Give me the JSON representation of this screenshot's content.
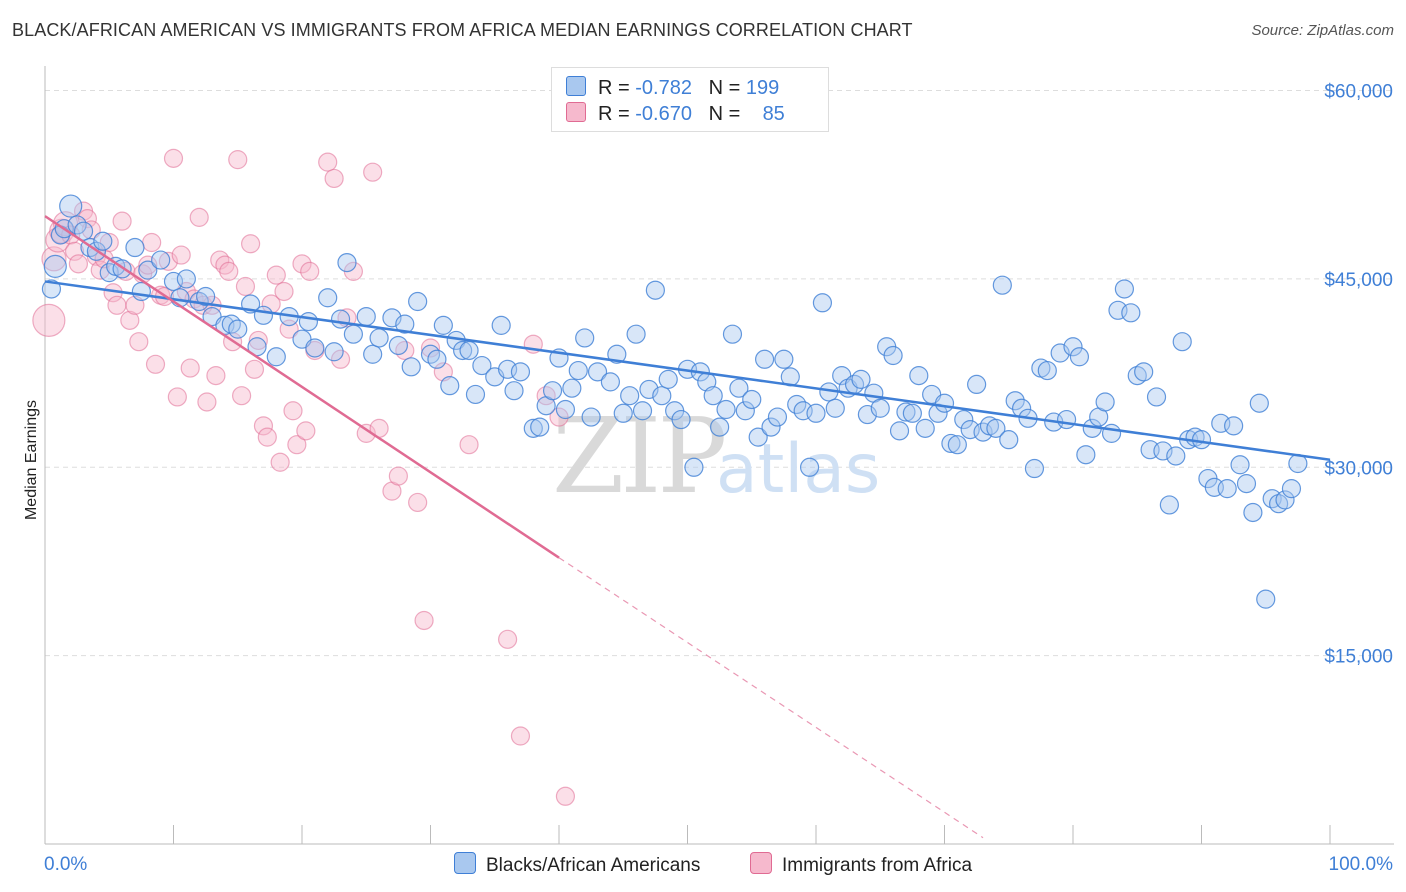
{
  "title": "BLACK/AFRICAN AMERICAN VS IMMIGRANTS FROM AFRICA MEDIAN EARNINGS CORRELATION CHART",
  "source": "Source: ZipAtlas.com",
  "watermark": {
    "zip": "ZIP",
    "atlas": "atlas"
  },
  "colors": {
    "blue": "#3f7fd6",
    "pink": "#e06b93",
    "blue_fill": "#a9c8ef",
    "pink_fill": "#f6b9cd",
    "grid": "#dddddd"
  },
  "legend": {
    "rows": [
      {
        "r_label": "R =",
        "r_value": "-0.782",
        "n_label": "N =",
        "n_value": "199"
      },
      {
        "r_label": "R =",
        "r_value": "-0.670",
        "n_label": "N =",
        "n_value": "85"
      }
    ]
  },
  "bottom_legend": {
    "blue": "Blacks/African Americans",
    "pink": "Immigrants from Africa"
  },
  "chart_data": {
    "type": "scatter",
    "title": "BLACK/AFRICAN AMERICAN VS IMMIGRANTS FROM AFRICA MEDIAN EARNINGS CORRELATION CHART",
    "xlabel": "",
    "ylabel": "Median Earnings",
    "xlim": [
      0,
      100
    ],
    "ylim": [
      0,
      61000
    ],
    "x_tick_labels": [
      "0.0%",
      "100.0%"
    ],
    "y_ticks": [
      15000,
      30000,
      45000,
      60000
    ],
    "y_tick_labels": [
      "$15,000",
      "$30,000",
      "$45,000",
      "$60,000"
    ],
    "grid": true,
    "legend_position": "top-center",
    "series": [
      {
        "name": "Blacks/African Americans",
        "color": "#3f7fd6",
        "R": -0.782,
        "N": 199,
        "trend": {
          "x": [
            0,
            100
          ],
          "y": [
            44800,
            30600
          ]
        },
        "points": [
          [
            0.5,
            44200
          ],
          [
            0.8,
            46000
          ],
          [
            1.2,
            48500
          ],
          [
            1.5,
            49000
          ],
          [
            2,
            50800
          ],
          [
            2.5,
            49300
          ],
          [
            3,
            48800
          ],
          [
            3.5,
            47500
          ],
          [
            4,
            47200
          ],
          [
            4.5,
            48000
          ],
          [
            5,
            45500
          ],
          [
            5.5,
            46000
          ],
          [
            6,
            45800
          ],
          [
            7,
            47500
          ],
          [
            7.5,
            44000
          ],
          [
            8,
            45700
          ],
          [
            9,
            46500
          ],
          [
            10,
            44800
          ],
          [
            10.5,
            43500
          ],
          [
            11,
            45000
          ],
          [
            12,
            43200
          ],
          [
            12.5,
            43600
          ],
          [
            13,
            42000
          ],
          [
            14,
            41300
          ],
          [
            14.5,
            41400
          ],
          [
            15,
            41000
          ],
          [
            16,
            43000
          ],
          [
            16.5,
            39600
          ],
          [
            17,
            42100
          ],
          [
            18,
            38800
          ],
          [
            19,
            42000
          ],
          [
            20,
            40200
          ],
          [
            20.5,
            41600
          ],
          [
            21,
            39500
          ],
          [
            22,
            43500
          ],
          [
            22.5,
            39200
          ],
          [
            23,
            41800
          ],
          [
            23.5,
            46300
          ],
          [
            24,
            40600
          ],
          [
            25,
            42000
          ],
          [
            25.5,
            39000
          ],
          [
            26,
            40300
          ],
          [
            27,
            41900
          ],
          [
            27.5,
            39700
          ],
          [
            28,
            41400
          ],
          [
            28.5,
            38000
          ],
          [
            29,
            43200
          ],
          [
            30,
            39000
          ],
          [
            30.5,
            38600
          ],
          [
            31,
            41300
          ],
          [
            31.5,
            36500
          ],
          [
            32,
            40100
          ],
          [
            32.5,
            39300
          ],
          [
            33,
            39300
          ],
          [
            33.5,
            35800
          ],
          [
            34,
            38100
          ],
          [
            35,
            37200
          ],
          [
            35.5,
            41300
          ],
          [
            36,
            37800
          ],
          [
            36.5,
            36100
          ],
          [
            37,
            37600
          ],
          [
            38,
            33100
          ],
          [
            38.5,
            33200
          ],
          [
            39,
            34900
          ],
          [
            39.5,
            36100
          ],
          [
            40,
            38700
          ],
          [
            40.5,
            34600
          ],
          [
            41,
            36300
          ],
          [
            41.5,
            37700
          ],
          [
            42,
            40300
          ],
          [
            42.5,
            34000
          ],
          [
            43,
            37600
          ],
          [
            44,
            36800
          ],
          [
            44.5,
            39000
          ],
          [
            45,
            34300
          ],
          [
            45.5,
            35700
          ],
          [
            46,
            40600
          ],
          [
            46.5,
            34500
          ],
          [
            47,
            36200
          ],
          [
            47.5,
            44100
          ],
          [
            48,
            35700
          ],
          [
            48.5,
            37000
          ],
          [
            49,
            34500
          ],
          [
            49.5,
            33800
          ],
          [
            50,
            37800
          ],
          [
            50.5,
            30000
          ],
          [
            51,
            37600
          ],
          [
            51.5,
            36800
          ],
          [
            52,
            35700
          ],
          [
            52.5,
            33200
          ],
          [
            53,
            34600
          ],
          [
            53.5,
            40600
          ],
          [
            54,
            36300
          ],
          [
            54.5,
            34500
          ],
          [
            55,
            35400
          ],
          [
            55.5,
            32400
          ],
          [
            56,
            38600
          ],
          [
            56.5,
            33200
          ],
          [
            57,
            34000
          ],
          [
            57.5,
            38600
          ],
          [
            58,
            37200
          ],
          [
            58.5,
            35000
          ],
          [
            59,
            34500
          ],
          [
            59.5,
            30000
          ],
          [
            60,
            34300
          ],
          [
            60.5,
            43100
          ],
          [
            61,
            36000
          ],
          [
            61.5,
            34700
          ],
          [
            62,
            37300
          ],
          [
            62.5,
            36300
          ],
          [
            63,
            36600
          ],
          [
            63.5,
            37000
          ],
          [
            64,
            34200
          ],
          [
            64.5,
            35900
          ],
          [
            65,
            34700
          ],
          [
            65.5,
            39600
          ],
          [
            66,
            38900
          ],
          [
            66.5,
            32900
          ],
          [
            67,
            34400
          ],
          [
            67.5,
            34300
          ],
          [
            68,
            37300
          ],
          [
            68.5,
            33100
          ],
          [
            69,
            35800
          ],
          [
            69.5,
            34300
          ],
          [
            70,
            35100
          ],
          [
            70.5,
            31900
          ],
          [
            71,
            31800
          ],
          [
            71.5,
            33800
          ],
          [
            72,
            33000
          ],
          [
            72.5,
            36600
          ],
          [
            73,
            32800
          ],
          [
            73.5,
            33300
          ],
          [
            74,
            33100
          ],
          [
            74.5,
            44500
          ],
          [
            75,
            32200
          ],
          [
            75.5,
            35300
          ],
          [
            76,
            34700
          ],
          [
            76.5,
            33900
          ],
          [
            77,
            29900
          ],
          [
            77.5,
            37900
          ],
          [
            78,
            37700
          ],
          [
            78.5,
            33600
          ],
          [
            79,
            39100
          ],
          [
            79.5,
            33800
          ],
          [
            80,
            39600
          ],
          [
            80.5,
            38800
          ],
          [
            81,
            31000
          ],
          [
            81.5,
            33100
          ],
          [
            82,
            34000
          ],
          [
            82.5,
            35200
          ],
          [
            83,
            32700
          ],
          [
            83.5,
            42500
          ],
          [
            84,
            44200
          ],
          [
            84.5,
            42300
          ],
          [
            85,
            37300
          ],
          [
            85.5,
            37600
          ],
          [
            86,
            31400
          ],
          [
            86.5,
            35600
          ],
          [
            87,
            31300
          ],
          [
            87.5,
            27000
          ],
          [
            88,
            30900
          ],
          [
            88.5,
            40000
          ],
          [
            89,
            32200
          ],
          [
            89.5,
            32400
          ],
          [
            90,
            32200
          ],
          [
            90.5,
            29100
          ],
          [
            91,
            28400
          ],
          [
            91.5,
            33500
          ],
          [
            92,
            28300
          ],
          [
            92.5,
            33300
          ],
          [
            93,
            30200
          ],
          [
            93.5,
            28700
          ],
          [
            94,
            26400
          ],
          [
            94.5,
            35100
          ],
          [
            95,
            19500
          ],
          [
            95.5,
            27500
          ],
          [
            96,
            27100
          ],
          [
            96.5,
            27400
          ],
          [
            97,
            28300
          ],
          [
            97.5,
            30300
          ]
        ]
      },
      {
        "name": "Immigrants from Africa",
        "color": "#e06b93",
        "R": -0.67,
        "N": 85,
        "trend": {
          "x": [
            0,
            40
          ],
          "y": [
            50000,
            22800
          ]
        },
        "trend_dashed": {
          "x": [
            40,
            73
          ],
          "y": [
            22800,
            500
          ]
        },
        "points": [
          [
            0.3,
            41700
          ],
          [
            0.7,
            46600
          ],
          [
            1,
            48100
          ],
          [
            1.3,
            48800
          ],
          [
            1.6,
            49400
          ],
          [
            2,
            48500
          ],
          [
            2.3,
            47200
          ],
          [
            2.6,
            46200
          ],
          [
            3,
            50400
          ],
          [
            3.3,
            49800
          ],
          [
            3.6,
            48900
          ],
          [
            4,
            46800
          ],
          [
            4.3,
            45700
          ],
          [
            4.6,
            46600
          ],
          [
            5,
            47900
          ],
          [
            5.3,
            43900
          ],
          [
            5.6,
            42900
          ],
          [
            6,
            49600
          ],
          [
            6.3,
            45600
          ],
          [
            6.6,
            41700
          ],
          [
            7,
            42900
          ],
          [
            7.3,
            40000
          ],
          [
            7.6,
            45400
          ],
          [
            8,
            46100
          ],
          [
            8.3,
            47900
          ],
          [
            8.6,
            38200
          ],
          [
            9,
            43700
          ],
          [
            9.3,
            43600
          ],
          [
            9.6,
            46400
          ],
          [
            10,
            54600
          ],
          [
            10.3,
            35600
          ],
          [
            10.6,
            46900
          ],
          [
            11,
            44000
          ],
          [
            11.3,
            37900
          ],
          [
            11.6,
            43400
          ],
          [
            12,
            49900
          ],
          [
            12.3,
            42900
          ],
          [
            12.6,
            35200
          ],
          [
            13,
            42900
          ],
          [
            13.3,
            37300
          ],
          [
            13.6,
            46500
          ],
          [
            14,
            46100
          ],
          [
            14.3,
            45600
          ],
          [
            14.6,
            40000
          ],
          [
            15,
            54500
          ],
          [
            15.3,
            35700
          ],
          [
            15.6,
            44400
          ],
          [
            16,
            47800
          ],
          [
            16.3,
            37800
          ],
          [
            16.6,
            40100
          ],
          [
            17,
            33300
          ],
          [
            17.3,
            32400
          ],
          [
            17.6,
            43000
          ],
          [
            18,
            45300
          ],
          [
            18.3,
            30400
          ],
          [
            18.6,
            44000
          ],
          [
            19,
            41000
          ],
          [
            19.3,
            34500
          ],
          [
            19.6,
            31800
          ],
          [
            20,
            46200
          ],
          [
            20.3,
            32900
          ],
          [
            20.6,
            45600
          ],
          [
            21,
            39300
          ],
          [
            22,
            54300
          ],
          [
            22.5,
            53000
          ],
          [
            23,
            38600
          ],
          [
            23.5,
            41900
          ],
          [
            24,
            45600
          ],
          [
            25,
            32700
          ],
          [
            25.5,
            53500
          ],
          [
            26,
            33100
          ],
          [
            27,
            28100
          ],
          [
            27.5,
            29300
          ],
          [
            28,
            39300
          ],
          [
            29,
            27200
          ],
          [
            29.5,
            17800
          ],
          [
            30,
            39500
          ],
          [
            31,
            37600
          ],
          [
            33,
            31800
          ],
          [
            36,
            16300
          ],
          [
            37,
            8600
          ],
          [
            38,
            39800
          ],
          [
            39,
            35700
          ],
          [
            40,
            34000
          ],
          [
            40.5,
            3800
          ]
        ]
      }
    ]
  }
}
